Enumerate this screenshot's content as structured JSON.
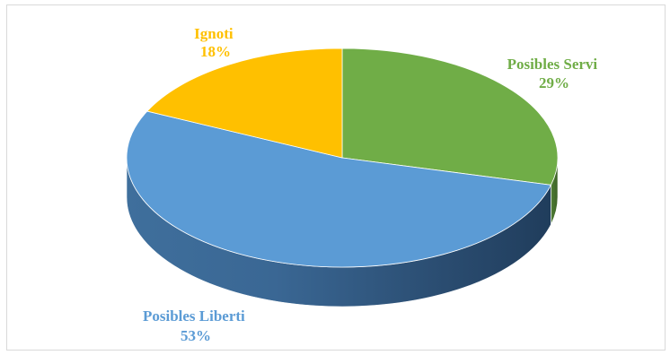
{
  "chart_data": {
    "type": "pie",
    "style": "3d",
    "title": "",
    "categories": [
      "Posibles Servi",
      "Posibles Liberti",
      "Ignoti"
    ],
    "values": [
      29,
      53,
      18
    ],
    "value_labels": [
      "29%",
      "53%",
      "18%"
    ],
    "colors": [
      "#70ad47",
      "#5b9bd5",
      "#ffc000"
    ],
    "label_colors": [
      "#70ad47",
      "#5b9bd5",
      "#ffc000"
    ],
    "legend": "none",
    "grid": false
  }
}
